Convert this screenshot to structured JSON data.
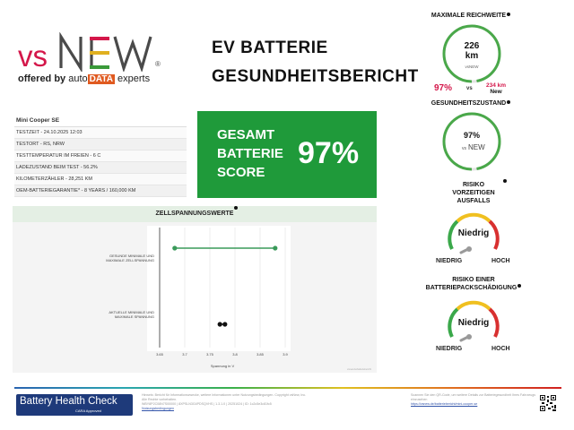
{
  "brand": {
    "vs": "vs",
    "new": "NEW",
    "reg": "®",
    "offered_by": "offered by",
    "auto": "auto",
    "data": "DATA",
    "experts": "experts"
  },
  "title": {
    "line1": "EV BATTERIE",
    "line2": "GESUNDHEITSBERICHT"
  },
  "info": {
    "car": "Mini Cooper SE",
    "rows": [
      "TESTZEIT - 24.10.2025 12:03",
      "TESTORT - RS, NRW",
      "TESTTEMPERATUR IM FREIEN - 6 C",
      "LADEZUSTAND BEIM TEST - 56.2%",
      "KILOMETERZÄHLER - 28,251 KM",
      "OEM-BATTERIEGARANTIE* - 8 YEARS / 160,000 KM"
    ]
  },
  "score": {
    "line1": "GESAMT",
    "line2": "BATTERIE",
    "line3": "SCORE",
    "value": "97%"
  },
  "cells": {
    "title": "ZELLSPANNUNGSWERTE",
    "row1_label_a": "GESUNDE MINIMALE UND",
    "row1_label_b": "MAXIMALE ZELLSPANNUNG",
    "row2_label_a": "AKTUELLE MINIMALE UND",
    "row2_label_b": "MAXIMALE SPANNUNG",
    "xlabel": "Spannung in V",
    "source": "vsnew.de/batteriebericht"
  },
  "chart_data": {
    "type": "range",
    "xlabel": "Spannung in V",
    "xticks": [
      "3.65",
      "3.7",
      "3.75",
      "3.8",
      "3.85",
      "3.9"
    ],
    "xlim": [
      3.65,
      3.9
    ],
    "series": [
      {
        "name": "GESUNDE MINIMALE UND MAXIMALE ZELLSPANNUNG",
        "min": 3.68,
        "max": 3.88,
        "color": "#3a9a5a"
      },
      {
        "name": "AKTUELLE MINIMALE UND MAXIMALE SPANNUNG",
        "min": 3.77,
        "max": 3.78,
        "color": "#111111"
      }
    ]
  },
  "range": {
    "title": "MAXIMALE REICHWEITE",
    "value": "226",
    "unit": "km",
    "brand": "vsNEW",
    "pct": "97%",
    "vs": "vs",
    "new_value": "234 km",
    "new_label": "New",
    "fraction": 0.97
  },
  "health": {
    "title": "GESUNDHEITSZUSTAND",
    "value": "97%",
    "vs": "vs",
    "brand": "NEW",
    "fraction": 0.97
  },
  "risk1": {
    "title_a": "RISIKO",
    "title_b": "VORZEITIGEN",
    "title_c": "AUSFALLS",
    "level": "Niedrig",
    "low": "NIEDRIG",
    "high": "HOCH"
  },
  "risk2": {
    "title_a": "RISIKO EINER",
    "title_b": "BATTERIEPACKSCHÄDIGUNG",
    "level": "Niedrig",
    "low": "NIEDRIG",
    "high": "HOCH"
  },
  "footer": {
    "bhc_title": "Battery Health Check",
    "bhc_sub": "CARA Approved",
    "fine_left_1": "Hinweis: Bericht für Informationszwecke, weitere Informationen unter Nutzungsbedingungen. Copyright vsNew, Inc.",
    "fine_left_link": "Nutzungsbedingungen",
    "fine_left_2": "Alle Rechte vorbehalten.",
    "fine_left_3": "WBY8P2C08N7S00000 | 8XPSLN3G4PDSQVHS | 1.3.1.0 | 20251024 | ID: 1c2c5e3c81fc5",
    "fine_right_1": "Scannen Sie den QR-Code, um weitere Details zur Batteriegesundheit Ihres Fahrzeugs",
    "fine_right_2": "einzusehen",
    "fine_right_link": "https://vsnew.de/batteriebericht/mini-cooper-se"
  },
  "colors": {
    "green": "#1f9a3a",
    "accent_red": "#d4174a",
    "new_green": "#3a9a3a",
    "new_blue": "#2a6ab0"
  }
}
